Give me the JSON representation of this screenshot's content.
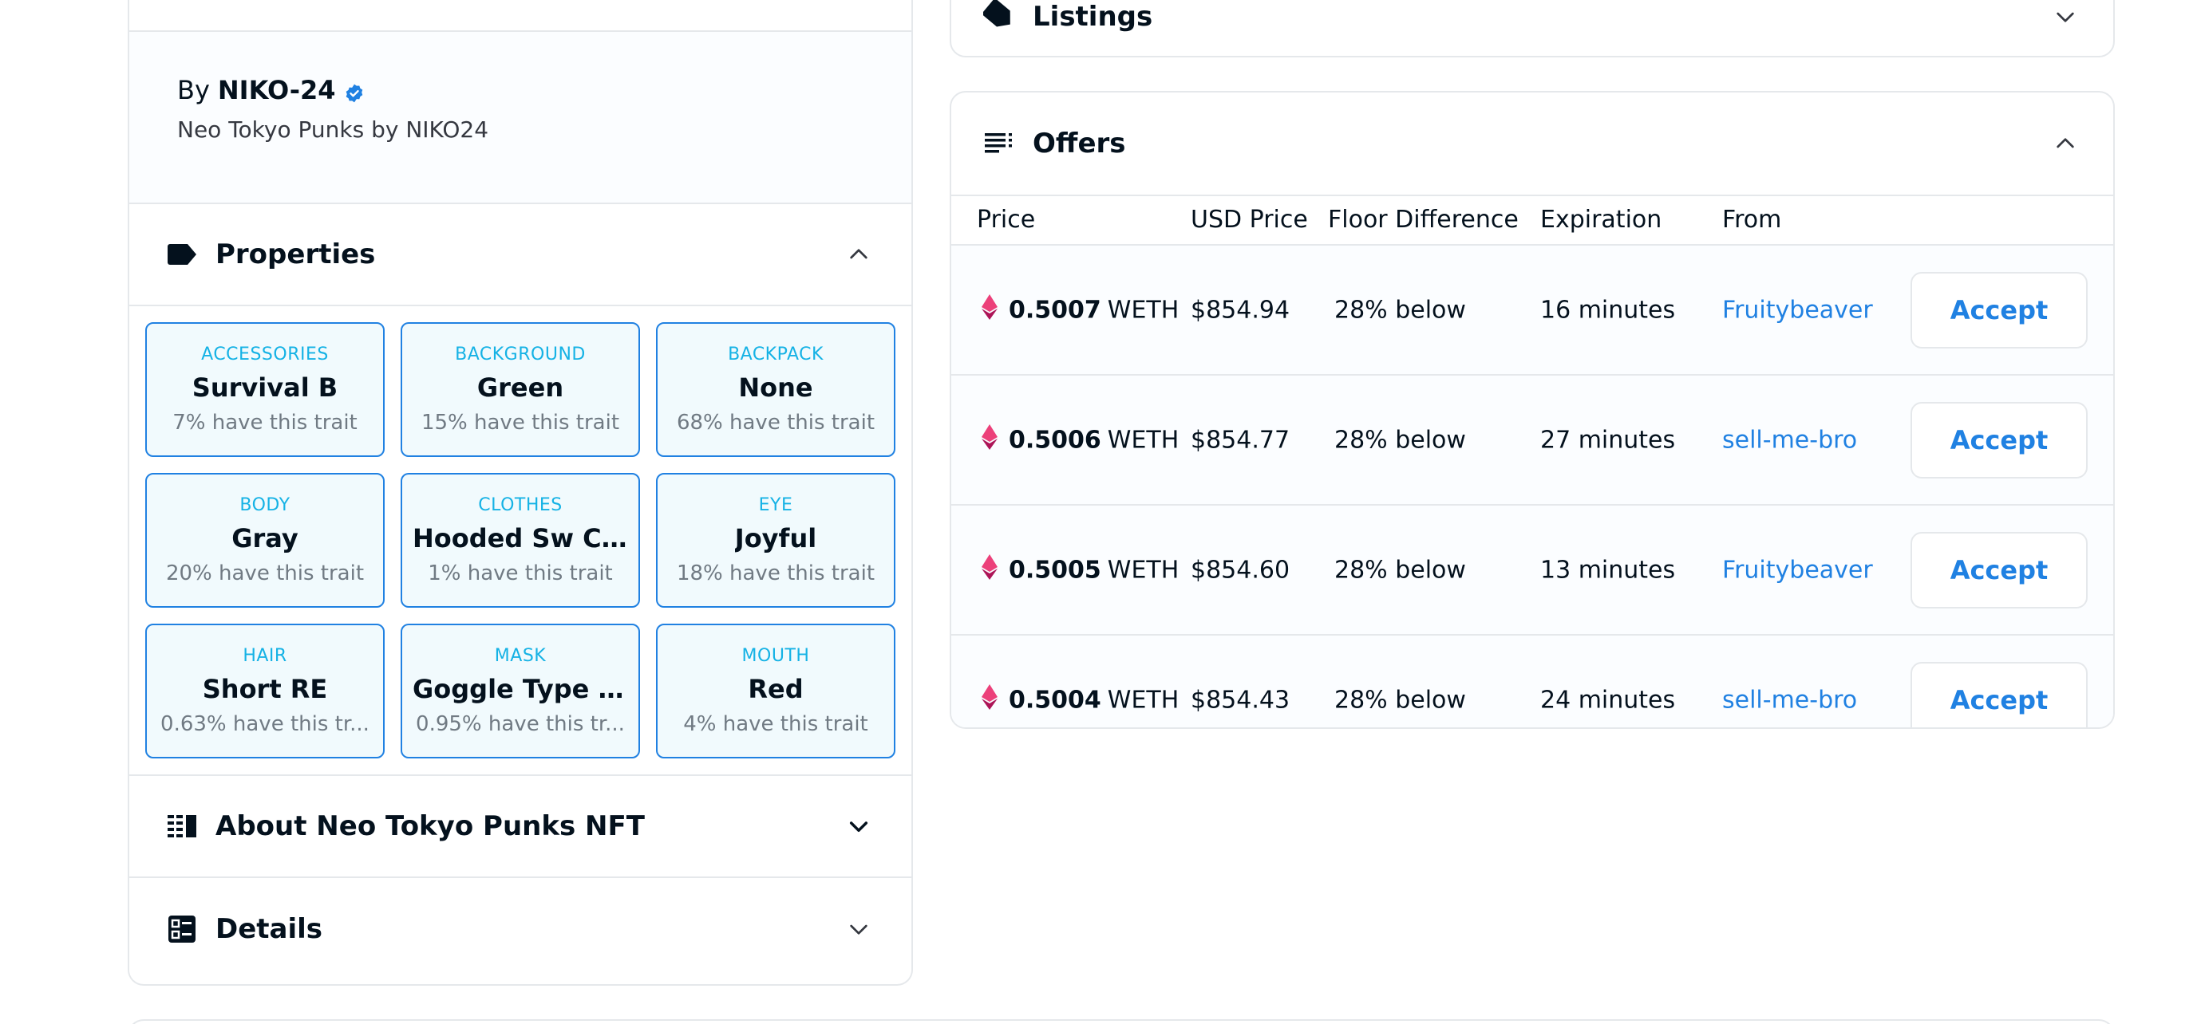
{
  "creator": {
    "by_label": "By",
    "name": "NIKO-24",
    "description": "Neo Tokyo Punks by NIKO24"
  },
  "sections": {
    "properties": "Properties",
    "about": "About Neo Tokyo Punks NFT",
    "details": "Details",
    "listings": "Listings",
    "offers": "Offers"
  },
  "traits": [
    {
      "type": "ACCESSORIES",
      "value": "Survival B",
      "rarity": "7% have this trait"
    },
    {
      "type": "BACKGROUND",
      "value": "Green",
      "rarity": "15% have this trait"
    },
    {
      "type": "BACKPACK",
      "value": "None",
      "rarity": "68% have this trait"
    },
    {
      "type": "BODY",
      "value": "Gray",
      "rarity": "20% have this trait"
    },
    {
      "type": "CLOTHES",
      "value": "Hooded Sw Ca...",
      "rarity": "1% have this trait"
    },
    {
      "type": "EYE",
      "value": "Joyful",
      "rarity": "18% have this trait"
    },
    {
      "type": "HAIR",
      "value": "Short RE",
      "rarity": "0.63% have this tr..."
    },
    {
      "type": "MASK",
      "value": "Goggle Type N ...",
      "rarity": "0.95% have this tr..."
    },
    {
      "type": "MOUTH",
      "value": "Red",
      "rarity": "4% have this trait"
    }
  ],
  "offers_table": {
    "headers": {
      "price": "Price",
      "usd_price": "USD Price",
      "floor_difference": "Floor Difference",
      "expiration": "Expiration",
      "from": "From"
    },
    "rows": [
      {
        "amount": "0.5007",
        "unit": "WETH",
        "usd": "$854.94",
        "floor": "28% below",
        "expiration": "16 minutes",
        "from": "Fruitybeaver",
        "action": "Accept"
      },
      {
        "amount": "0.5006",
        "unit": "WETH",
        "usd": "$854.77",
        "floor": "28% below",
        "expiration": "27 minutes",
        "from": "sell-me-bro",
        "action": "Accept"
      },
      {
        "amount": "0.5005",
        "unit": "WETH",
        "usd": "$854.60",
        "floor": "28% below",
        "expiration": "13 minutes",
        "from": "Fruitybeaver",
        "action": "Accept"
      },
      {
        "amount": "0.5004",
        "unit": "WETH",
        "usd": "$854.43",
        "floor": "28% below",
        "expiration": "24 minutes",
        "from": "sell-me-bro",
        "action": "Accept"
      }
    ]
  },
  "colors": {
    "accent": "#2081e2",
    "trait_type": "#15b2e5",
    "eth": "#ec407a",
    "border": "#e5e8eb"
  },
  "icons": {
    "verified": "verified-badge-icon",
    "properties": "tag-icon",
    "about": "description-icon",
    "details": "details-icon",
    "listings": "tag-icon",
    "offers": "list-icon",
    "eth": "weth-icon"
  }
}
